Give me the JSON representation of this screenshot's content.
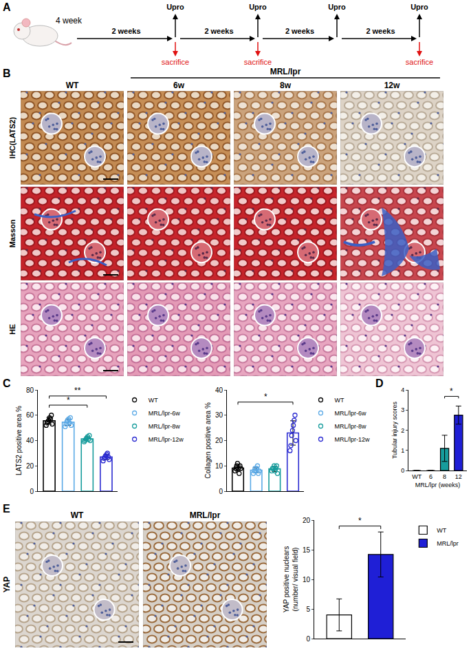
{
  "panel_labels": [
    "A",
    "B",
    "C",
    "D",
    "E"
  ],
  "timeline": {
    "start": "4 week",
    "intervals": [
      "2 weeks",
      "2 weeks",
      "2 weeks",
      "2 weeks"
    ],
    "checkpoints": [
      "Upro",
      "Upro",
      "Upro",
      "Upro"
    ],
    "sacrifice_label": "sacrifice",
    "sacrifice": [
      true,
      true,
      false,
      true
    ]
  },
  "histology": {
    "group": "MRL/lpr",
    "columns": [
      "WT",
      "6w",
      "8w",
      "12w"
    ],
    "rows": [
      "IHC(LATS2)",
      "Masson",
      "HE"
    ]
  },
  "yap_images": {
    "row": "YAP",
    "columns": [
      "WT",
      "MRL/lpr"
    ]
  },
  "chart_data": [
    {
      "type": "bar",
      "ylabel": "LATS2 positive area %",
      "categories": [
        "WT",
        "MRL/lpr-6w",
        "MRL/lpr-8w",
        "MRL/lpr-12w"
      ],
      "values": [
        55.6,
        54.5,
        41.3,
        27
      ],
      "errors": [
        2.7,
        2.5,
        1.7,
        2
      ],
      "points": [
        [
          52,
          54,
          55,
          56,
          58,
          57,
          60,
          53
        ],
        [
          51,
          53,
          55,
          56,
          57,
          54,
          58,
          52
        ],
        [
          39,
          40,
          41,
          42,
          43,
          41,
          44,
          40
        ],
        [
          24,
          26,
          27,
          28,
          29,
          30,
          27,
          25
        ]
      ],
      "colors": [
        "#000000",
        "#5aa9e6",
        "#169c9c",
        "#2b2bd1"
      ],
      "marker": "circle-open",
      "ylim": [
        0,
        80
      ],
      "yticks": [
        0,
        20,
        40,
        60,
        80
      ],
      "grid": false,
      "tick_labels": "y",
      "legend": "right",
      "significance": [
        {
          "pair": [
            "WT",
            "MRL/lpr-8w"
          ],
          "label": "*"
        },
        {
          "pair": [
            "WT",
            "MRL/lpr-12w"
          ],
          "label": "**"
        }
      ]
    },
    {
      "type": "bar",
      "ylabel": "Collagen positive area %",
      "categories": [
        "WT",
        "MRL/lpr-6w",
        "MRL/lpr-8w",
        "MRL/lpr-12w"
      ],
      "values": [
        9.1,
        8.3,
        8.8,
        23
      ],
      "errors": [
        1.2,
        1,
        1,
        4.8
      ],
      "points": [
        [
          8,
          9,
          10,
          11,
          9,
          7,
          10,
          9
        ],
        [
          7,
          8,
          9,
          8,
          9,
          10,
          7,
          8
        ],
        [
          8,
          9,
          9,
          10,
          8,
          9,
          10,
          7
        ],
        [
          16,
          18,
          22,
          24,
          26,
          28,
          30,
          20
        ]
      ],
      "colors": [
        "#000000",
        "#5aa9e6",
        "#169c9c",
        "#2b2bd1"
      ],
      "marker": "circle-open",
      "ylim": [
        0,
        40
      ],
      "yticks": [
        0,
        10,
        20,
        30,
        40
      ],
      "grid": false,
      "tick_labels": "y",
      "legend": "right",
      "significance": [
        {
          "pair": [
            "WT",
            "MRL/lpr-12w"
          ],
          "label": "*"
        }
      ]
    },
    {
      "type": "bar",
      "ylabel": "Tubular injury scores",
      "xlabel": "MRL/lpr (weeks)",
      "categories": [
        "WT",
        "6",
        "8",
        "12"
      ],
      "values": [
        0,
        0,
        1.1,
        2.75
      ],
      "errors": [
        null,
        null,
        0.65,
        0.45
      ],
      "colors": [
        "#000000",
        "#5aa9e6",
        "#169c9c",
        "#1f1fd6"
      ],
      "ylim": [
        0,
        4
      ],
      "yticks": [
        0,
        1,
        2,
        3,
        4
      ],
      "grid": false,
      "significance": [
        {
          "pair": [
            "8",
            "12"
          ],
          "label": "*"
        }
      ]
    },
    {
      "type": "bar",
      "ylabel": [
        "YAP positive nuclears",
        "(number/ visual field)"
      ],
      "categories": [
        "WT",
        "MRL/lpr"
      ],
      "values": [
        4,
        14.2
      ],
      "errors": [
        2.7,
        3.8
      ],
      "colors": [
        "#ffffff",
        "#1f1fd6"
      ],
      "ylim": [
        0,
        20
      ],
      "yticks": [
        0,
        5,
        10,
        15,
        20
      ],
      "grid": false,
      "tick_labels": "y",
      "legend": "right",
      "significance": [
        {
          "pair": [
            "WT",
            "MRL/lpr"
          ],
          "label": "*"
        }
      ]
    }
  ]
}
